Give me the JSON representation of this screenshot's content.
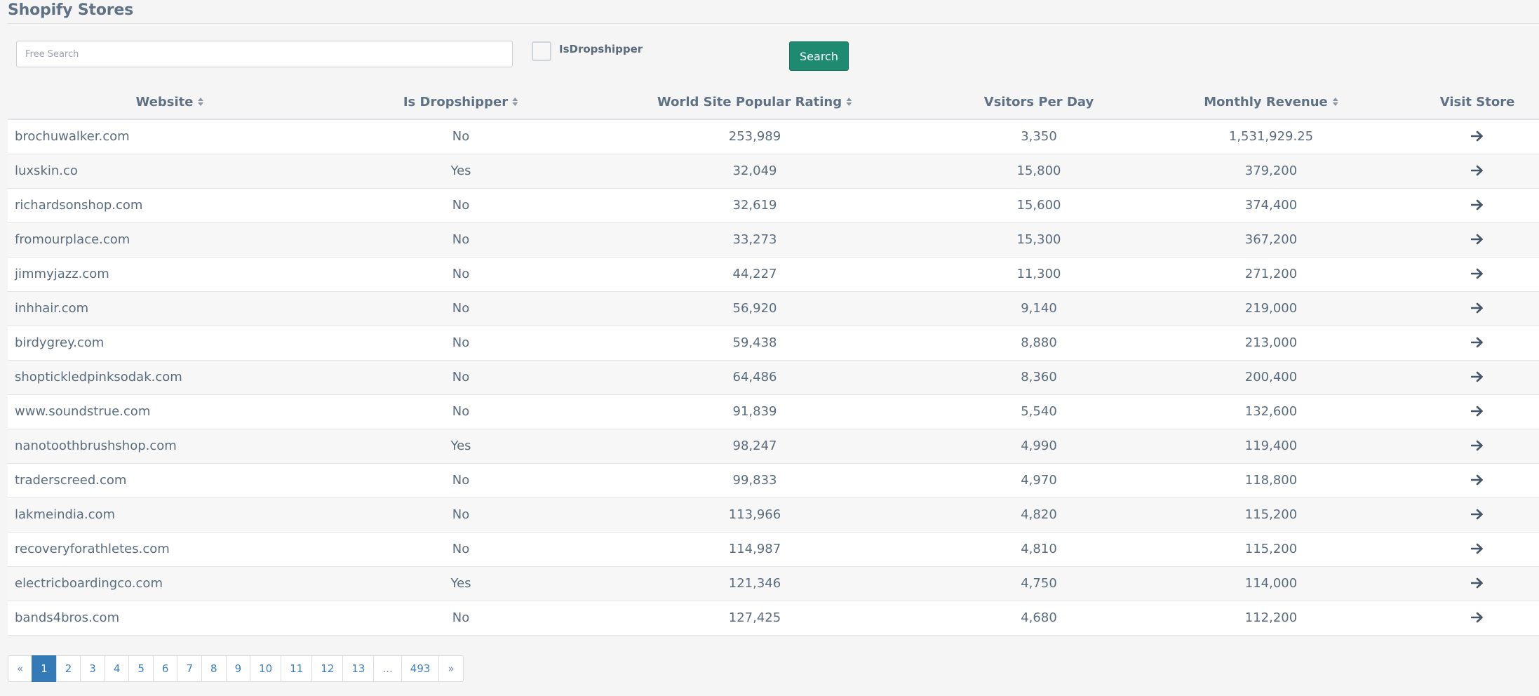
{
  "page": {
    "title": "Shopify Stores"
  },
  "search": {
    "placeholder": "Free Search",
    "value": "",
    "button_label": "Search"
  },
  "filter": {
    "dropshipper_label": "IsDropshipper",
    "dropshipper_checked": false
  },
  "table": {
    "columns": [
      {
        "label": "Website",
        "sortable": true
      },
      {
        "label": "Is Dropshipper",
        "sortable": true
      },
      {
        "label": "World Site Popular Rating",
        "sortable": true
      },
      {
        "label": "Vsitors Per Day",
        "sortable": false
      },
      {
        "label": "Monthly Revenue",
        "sortable": true
      },
      {
        "label": "Visit Store",
        "sortable": false
      }
    ],
    "rows": [
      {
        "website": "brochuwalker.com",
        "dropshipper": "No",
        "rating": "253,989",
        "visitors": "3,350",
        "revenue": "1,531,929.25"
      },
      {
        "website": "luxskin.co",
        "dropshipper": "Yes",
        "rating": "32,049",
        "visitors": "15,800",
        "revenue": "379,200"
      },
      {
        "website": "richardsonshop.com",
        "dropshipper": "No",
        "rating": "32,619",
        "visitors": "15,600",
        "revenue": "374,400"
      },
      {
        "website": "fromourplace.com",
        "dropshipper": "No",
        "rating": "33,273",
        "visitors": "15,300",
        "revenue": "367,200"
      },
      {
        "website": "jimmyjazz.com",
        "dropshipper": "No",
        "rating": "44,227",
        "visitors": "11,300",
        "revenue": "271,200"
      },
      {
        "website": "inhhair.com",
        "dropshipper": "No",
        "rating": "56,920",
        "visitors": "9,140",
        "revenue": "219,000"
      },
      {
        "website": "birdygrey.com",
        "dropshipper": "No",
        "rating": "59,438",
        "visitors": "8,880",
        "revenue": "213,000"
      },
      {
        "website": "shoptickledpinksodak.com",
        "dropshipper": "No",
        "rating": "64,486",
        "visitors": "8,360",
        "revenue": "200,400"
      },
      {
        "website": "www.soundstrue.com",
        "dropshipper": "No",
        "rating": "91,839",
        "visitors": "5,540",
        "revenue": "132,600"
      },
      {
        "website": "nanotoothbrushshop.com",
        "dropshipper": "Yes",
        "rating": "98,247",
        "visitors": "4,990",
        "revenue": "119,400"
      },
      {
        "website": "traderscreed.com",
        "dropshipper": "No",
        "rating": "99,833",
        "visitors": "4,970",
        "revenue": "118,800"
      },
      {
        "website": "lakmeindia.com",
        "dropshipper": "No",
        "rating": "113,966",
        "visitors": "4,820",
        "revenue": "115,200"
      },
      {
        "website": "recoveryforathletes.com",
        "dropshipper": "No",
        "rating": "114,987",
        "visitors": "4,810",
        "revenue": "115,200"
      },
      {
        "website": "electricboardingco.com",
        "dropshipper": "Yes",
        "rating": "121,346",
        "visitors": "4,750",
        "revenue": "114,000"
      },
      {
        "website": "bands4bros.com",
        "dropshipper": "No",
        "rating": "127,425",
        "visitors": "4,680",
        "revenue": "112,200"
      }
    ],
    "visit_icon": "arrow-right-icon"
  },
  "pagination": {
    "prev": "«",
    "pages": [
      "1",
      "2",
      "3",
      "4",
      "5",
      "6",
      "7",
      "8",
      "9",
      "10",
      "11",
      "12",
      "13",
      "...",
      "493"
    ],
    "current": "1",
    "next": "»"
  },
  "colors": {
    "accent_button": "#1e8a6f",
    "active_page": "#337ab7",
    "link": "#3b80c2",
    "text": "#5b6c7e"
  }
}
